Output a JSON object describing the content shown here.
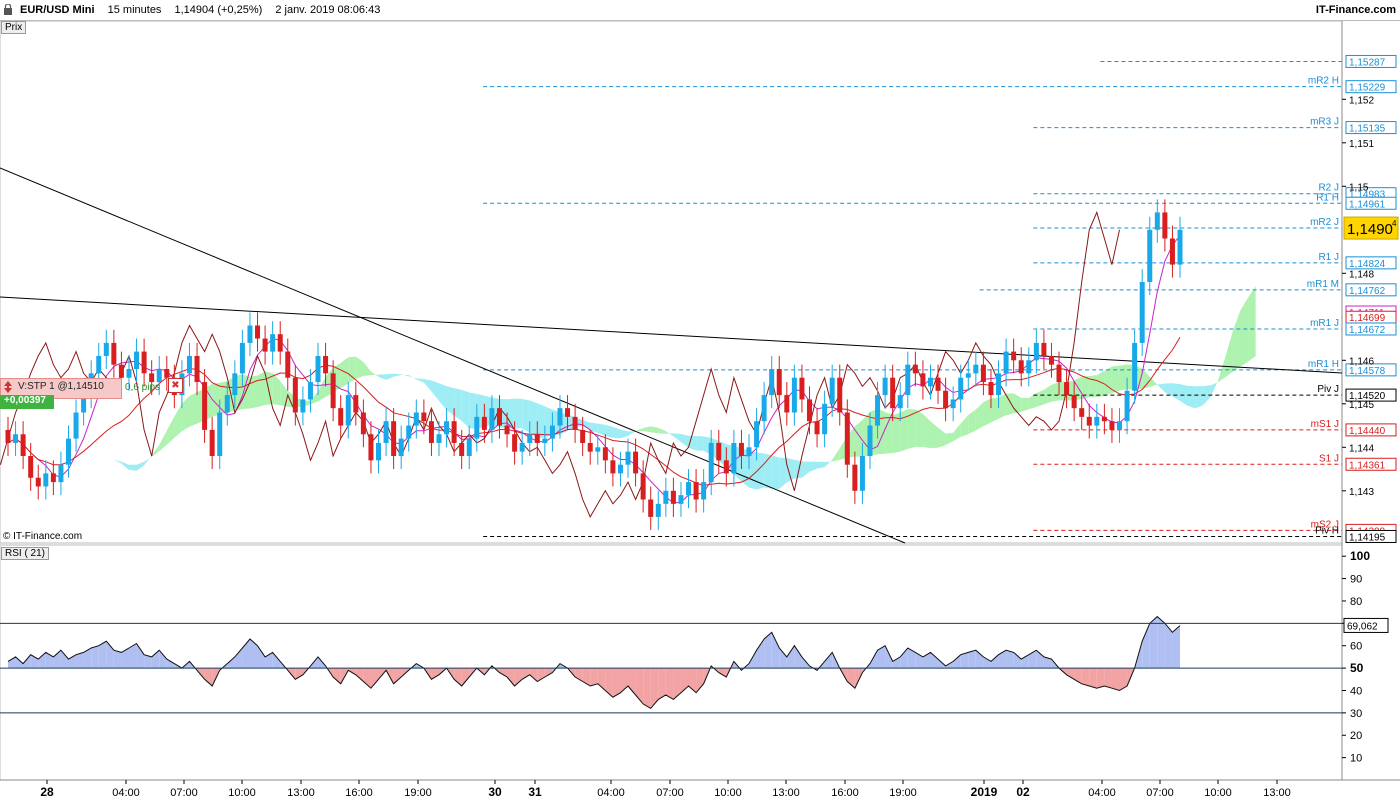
{
  "header": {
    "symbol": "EUR/USD Mini",
    "timeframe": "15 minutes",
    "quote": "1,14904 (+0,25%)",
    "datetime": "2 janv. 2019 08:06:43",
    "brand": "IT-Finance.com"
  },
  "panels": {
    "price_label": "Prix",
    "rsi_label": "RSI ( 21)",
    "credit": "© IT-Finance.com"
  },
  "order": {
    "label": "V:STP 1 @1,14510",
    "pips": "0,6 pips",
    "close_icon": "✖",
    "pl": "+0,00397"
  },
  "colors": {
    "bull": "#19a9e8",
    "bear": "#d81e1e",
    "cloud_up": "#9ff0a0",
    "cloud_down": "#8de9f2",
    "tenkan": "#cc22cc",
    "kijun": "#d81e1e",
    "chikou": "#8a1818",
    "pivot_blue": "#1b8fd6",
    "pivot_red": "#d81e1e",
    "rsi_up": "#b0bff2",
    "rsi_down": "#f2a3a3",
    "current_bg": "#ffd400"
  },
  "chart_data": {
    "type": "candlestick",
    "price_axis": {
      "range": [
        1.1418,
        1.1538
      ],
      "ticks": [
        "1,152",
        "1,151",
        "1,15",
        "1,148",
        "1,146",
        "1,145",
        "1,144",
        "1,143"
      ],
      "tick_values": [
        1.152,
        1.151,
        1.15,
        1.148,
        1.146,
        1.145,
        1.144,
        1.143
      ]
    },
    "current_price": {
      "label": "1,1490",
      "superscript": "4",
      "value": 1.14904
    },
    "x_ticks": [
      "28",
      "04:00",
      "07:00",
      "10:00",
      "13:00",
      "16:00",
      "19:00",
      "30",
      "31",
      "04:00",
      "07:00",
      "10:00",
      "13:00",
      "16:00",
      "19:00",
      "2019",
      "02",
      "04:00",
      "07:00",
      "10:00",
      "13:00"
    ],
    "x_tick_bold": [
      true,
      false,
      false,
      false,
      false,
      false,
      false,
      true,
      true,
      false,
      false,
      false,
      false,
      false,
      false,
      true,
      true,
      false,
      false,
      false,
      false
    ],
    "pivot_levels": [
      {
        "name": "",
        "value": 1.15287,
        "label": "1,15287",
        "color": "blue",
        "start": 0.82
      },
      {
        "name": "mR2 H",
        "value": 1.15229,
        "label": "1,15229",
        "color": "blue",
        "start": 0.36
      },
      {
        "name": "mR3 J",
        "value": 1.15135,
        "label": "1,15135",
        "color": "blue",
        "start": 0.77
      },
      {
        "name": "R2 J",
        "value": 1.14983,
        "label": "1,14983",
        "color": "blue",
        "start": 0.77
      },
      {
        "name": "R1 H",
        "value": 1.14961,
        "label": "1,14961",
        "color": "blue",
        "start": 0.36
      },
      {
        "name": "mR2 J",
        "value": 1.14904,
        "label": "1,14904",
        "color": "blue",
        "start": 0.77
      },
      {
        "name": "R1 J",
        "value": 1.14824,
        "label": "1,14824",
        "color": "blue",
        "start": 0.77
      },
      {
        "name": "mR1 M",
        "value": 1.14762,
        "label": "1,14762",
        "color": "blue",
        "start": 0.73
      },
      {
        "name": "",
        "value": 1.14711,
        "label": "1,14711",
        "color": "magenta",
        "start": 1.0
      },
      {
        "name": "",
        "value": 1.14699,
        "label": "1,14699",
        "color": "red",
        "start": 1.0
      },
      {
        "name": "mR1 J",
        "value": 1.14672,
        "label": "1,14672",
        "color": "blue",
        "start": 0.77
      },
      {
        "name": "mR1 H",
        "value": 1.14578,
        "label": "1,14578",
        "color": "blue",
        "start": 0.36
      },
      {
        "name": "Piv J",
        "value": 1.1452,
        "label": "1,14520",
        "color": "black",
        "start": 0.77
      },
      {
        "name": "mS1 J",
        "value": 1.1444,
        "label": "1,14440",
        "color": "red",
        "start": 0.77
      },
      {
        "name": "S1 J",
        "value": 1.14361,
        "label": "1,14361",
        "color": "red",
        "start": 0.77
      },
      {
        "name": "mS2 J",
        "value": 1.14209,
        "label": "1,14209",
        "color": "red",
        "start": 0.77
      },
      {
        "name": "Piv H",
        "value": 1.14195,
        "label": "1,14195",
        "color": "black",
        "start": 0.36
      }
    ],
    "candles_close": [
      1.1441,
      1.1443,
      1.1438,
      1.1433,
      1.1431,
      1.1434,
      1.1432,
      1.1436,
      1.1442,
      1.1448,
      1.1452,
      1.1457,
      1.1461,
      1.1464,
      1.1459,
      1.1456,
      1.1458,
      1.1462,
      1.1457,
      1.1455,
      1.1458,
      1.1456,
      1.1452,
      1.1457,
      1.1461,
      1.1455,
      1.1444,
      1.1438,
      1.1448,
      1.1452,
      1.1457,
      1.1464,
      1.1468,
      1.1465,
      1.1462,
      1.1466,
      1.1462,
      1.1456,
      1.1448,
      1.1451,
      1.1455,
      1.1461,
      1.1457,
      1.1449,
      1.1445,
      1.1452,
      1.1448,
      1.1443,
      1.1437,
      1.1441,
      1.1446,
      1.1438,
      1.1442,
      1.1445,
      1.1448,
      1.1446,
      1.1441,
      1.1443,
      1.1446,
      1.1441,
      1.1438,
      1.1442,
      1.1447,
      1.1444,
      1.1449,
      1.1445,
      1.1443,
      1.1439,
      1.1441,
      1.1443,
      1.1441,
      1.1442,
      1.1445,
      1.1449,
      1.1447,
      1.1444,
      1.1441,
      1.1439,
      1.144,
      1.1437,
      1.1434,
      1.1436,
      1.1439,
      1.1434,
      1.1428,
      1.1424,
      1.1427,
      1.143,
      1.1427,
      1.1429,
      1.1432,
      1.1428,
      1.1432,
      1.1441,
      1.1437,
      1.1434,
      1.1441,
      1.1438,
      1.144,
      1.1446,
      1.1452,
      1.1458,
      1.1452,
      1.1448,
      1.1456,
      1.1451,
      1.1446,
      1.1443,
      1.145,
      1.1456,
      1.1448,
      1.1436,
      1.143,
      1.1438,
      1.1445,
      1.1452,
      1.1456,
      1.1449,
      1.1452,
      1.1459,
      1.1457,
      1.1454,
      1.1456,
      1.1453,
      1.1449,
      1.1451,
      1.1456,
      1.1457,
      1.1459,
      1.1455,
      1.1452,
      1.1457,
      1.1462,
      1.146,
      1.1457,
      1.146,
      1.1464,
      1.1461,
      1.1459,
      1.1455,
      1.1452,
      1.1449,
      1.1447,
      1.1445,
      1.1447,
      1.1446,
      1.1444,
      1.1446,
      1.1453,
      1.1464,
      1.1478,
      1.149,
      1.1494,
      1.1488,
      1.1482,
      1.149
    ],
    "rsi": {
      "range": [
        0,
        105
      ],
      "ticks": [
        "100",
        "90",
        "80",
        "70",
        "60",
        "50",
        "40",
        "30",
        "20",
        "10"
      ],
      "tick_values": [
        100,
        90,
        80,
        70,
        60,
        50,
        40,
        30,
        20,
        10
      ],
      "levels": [
        70,
        50,
        30
      ],
      "current_label": "69,062",
      "current": 69.062,
      "values": [
        53,
        55,
        52,
        56,
        54,
        57,
        55,
        58,
        54,
        56,
        57,
        59,
        60,
        62,
        58,
        57,
        59,
        61,
        56,
        55,
        58,
        54,
        52,
        50,
        53,
        49,
        45,
        42,
        49,
        52,
        55,
        59,
        63,
        60,
        55,
        57,
        53,
        49,
        45,
        47,
        51,
        55,
        51,
        46,
        43,
        49,
        47,
        44,
        41,
        45,
        49,
        43,
        46,
        49,
        52,
        50,
        45,
        47,
        50,
        45,
        42,
        46,
        50,
        47,
        51,
        48,
        46,
        42,
        45,
        47,
        44,
        46,
        48,
        52,
        50,
        46,
        44,
        42,
        43,
        40,
        37,
        39,
        42,
        38,
        34,
        32,
        36,
        38,
        36,
        39,
        42,
        39,
        43,
        51,
        48,
        46,
        53,
        49,
        52,
        58,
        63,
        66,
        59,
        55,
        60,
        55,
        51,
        49,
        53,
        57,
        50,
        44,
        41,
        48,
        52,
        58,
        60,
        53,
        55,
        59,
        57,
        55,
        57,
        54,
        51,
        53,
        56,
        57,
        58,
        55,
        53,
        56,
        58,
        57,
        54,
        56,
        58,
        55,
        54,
        50,
        47,
        45,
        43,
        42,
        41,
        42,
        41,
        40,
        42,
        50,
        62,
        70,
        73,
        70,
        66,
        69
      ]
    }
  }
}
